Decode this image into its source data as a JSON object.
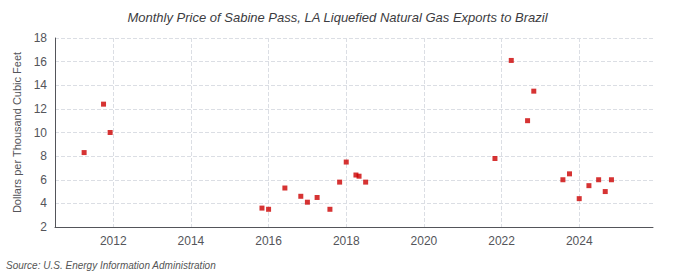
{
  "chart_data": {
    "type": "scatter",
    "title": "Monthly Price of Sabine Pass, LA Liquefied Natural Gas Exports to Brazil",
    "ylabel": "Dollars per Thousand Cubic Feet",
    "annotations": [
      "Source: U.S. Energy Information Administration"
    ],
    "x": [
      2011.25,
      2011.75,
      2011.92,
      2015.83,
      2016.0,
      2016.42,
      2016.83,
      2017.0,
      2017.25,
      2017.58,
      2017.83,
      2018.0,
      2018.25,
      2018.33,
      2018.5,
      2021.83,
      2022.25,
      2022.67,
      2022.83,
      2023.58,
      2023.75,
      2024.0,
      2024.25,
      2024.5,
      2024.67,
      2024.83
    ],
    "values": [
      8.3,
      12.4,
      10.0,
      3.6,
      3.5,
      5.3,
      4.6,
      4.1,
      4.5,
      3.5,
      5.8,
      7.5,
      6.4,
      6.3,
      5.8,
      7.8,
      16.1,
      11.0,
      13.5,
      6.0,
      6.5,
      4.4,
      5.5,
      6.0,
      5.0,
      6.0
    ],
    "color": "#cc0000",
    "marker": "square",
    "xlim": [
      2010.5,
      2025.9
    ],
    "xticks": [
      2012,
      2014,
      2016,
      2018,
      2020,
      2022,
      2024
    ],
    "ylim": [
      2,
      18
    ],
    "yticks": [
      2,
      4,
      6,
      8,
      10,
      12,
      14,
      16,
      18
    ],
    "grid": true
  }
}
